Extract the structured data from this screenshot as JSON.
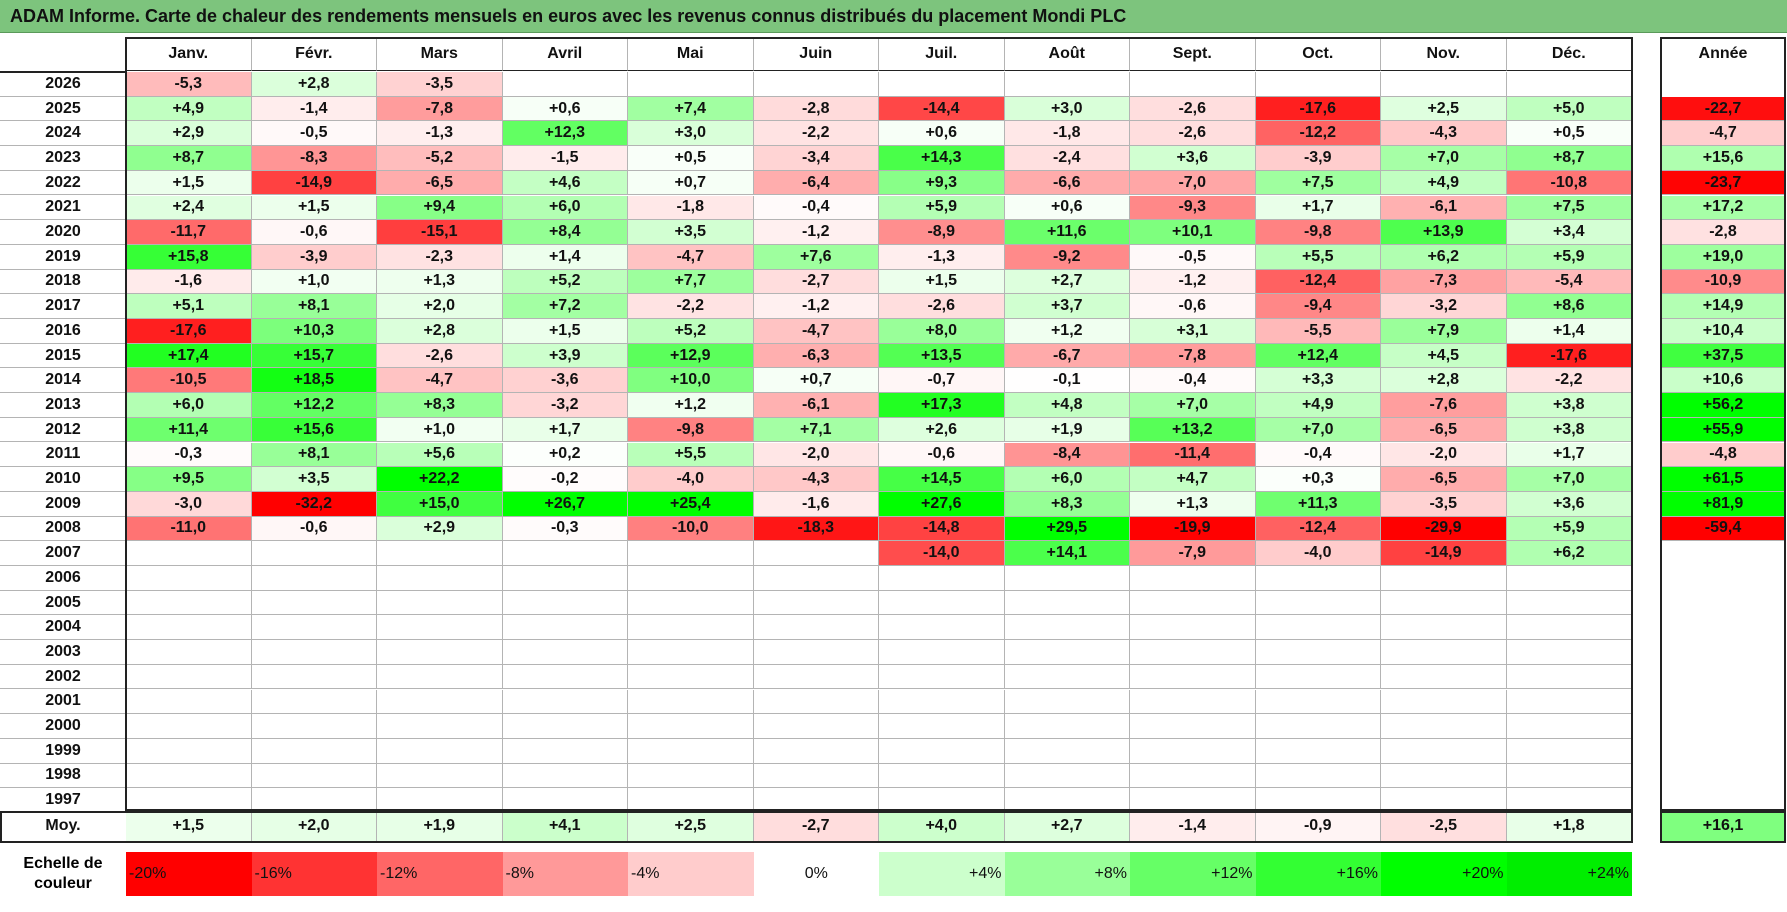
{
  "title": "ADAM Informe. Carte de chaleur des rendements mensuels en euros avec les revenus connus distribués du placement Mondi PLC",
  "chart_data": {
    "type": "heatmap",
    "columns": [
      "Janv.",
      "Févr.",
      "Mars",
      "Avril",
      "Mai",
      "Juin",
      "Juil.",
      "Août",
      "Sept.",
      "Oct.",
      "Nov.",
      "Déc."
    ],
    "year_label": "Année",
    "avg_label": "Moy.",
    "rows": [
      {
        "year": "2026",
        "months": [
          "-5,3",
          "+2,8",
          "-3,5",
          "",
          "",
          "",
          "",
          "",
          "",
          "",
          "",
          ""
        ],
        "total": ""
      },
      {
        "year": "2025",
        "months": [
          "+4,9",
          "-1,4",
          "-7,8",
          "+0,6",
          "+7,4",
          "-2,8",
          "-14,4",
          "+3,0",
          "-2,6",
          "-17,6",
          "+2,5",
          "+5,0"
        ],
        "total": "-22,7"
      },
      {
        "year": "2024",
        "months": [
          "+2,9",
          "-0,5",
          "-1,3",
          "+12,3",
          "+3,0",
          "-2,2",
          "+0,6",
          "-1,8",
          "-2,6",
          "-12,2",
          "-4,3",
          "+0,5"
        ],
        "total": "-4,7"
      },
      {
        "year": "2023",
        "months": [
          "+8,7",
          "-8,3",
          "-5,2",
          "-1,5",
          "+0,5",
          "-3,4",
          "+14,3",
          "-2,4",
          "+3,6",
          "-3,9",
          "+7,0",
          "+8,7"
        ],
        "total": "+15,6"
      },
      {
        "year": "2022",
        "months": [
          "+1,5",
          "-14,9",
          "-6,5",
          "+4,6",
          "+0,7",
          "-6,4",
          "+9,3",
          "-6,6",
          "-7,0",
          "+7,5",
          "+4,9",
          "-10,8"
        ],
        "total": "-23,7"
      },
      {
        "year": "2021",
        "months": [
          "+2,4",
          "+1,5",
          "+9,4",
          "+6,0",
          "-1,8",
          "-0,4",
          "+5,9",
          "+0,6",
          "-9,3",
          "+1,7",
          "-6,1",
          "+7,5"
        ],
        "total": "+17,2"
      },
      {
        "year": "2020",
        "months": [
          "-11,7",
          "-0,6",
          "-15,1",
          "+8,4",
          "+3,5",
          "-1,2",
          "-8,9",
          "+11,6",
          "+10,1",
          "-9,8",
          "+13,9",
          "+3,4"
        ],
        "total": "-2,8"
      },
      {
        "year": "2019",
        "months": [
          "+15,8",
          "-3,9",
          "-2,3",
          "+1,4",
          "-4,7",
          "+7,6",
          "-1,3",
          "-9,2",
          "-0,5",
          "+5,5",
          "+6,2",
          "+5,9"
        ],
        "total": "+19,0"
      },
      {
        "year": "2018",
        "months": [
          "-1,6",
          "+1,0",
          "+1,3",
          "+5,2",
          "+7,7",
          "-2,7",
          "+1,5",
          "+2,7",
          "-1,2",
          "-12,4",
          "-7,3",
          "-5,4"
        ],
        "total": "-10,9"
      },
      {
        "year": "2017",
        "months": [
          "+5,1",
          "+8,1",
          "+2,0",
          "+7,2",
          "-2,2",
          "-1,2",
          "-2,6",
          "+3,7",
          "-0,6",
          "-9,4",
          "-3,2",
          "+8,6"
        ],
        "total": "+14,9"
      },
      {
        "year": "2016",
        "months": [
          "-17,6",
          "+10,3",
          "+2,8",
          "+1,5",
          "+5,2",
          "-4,7",
          "+8,0",
          "+1,2",
          "+3,1",
          "-5,5",
          "+7,9",
          "+1,4"
        ],
        "total": "+10,4"
      },
      {
        "year": "2015",
        "months": [
          "+17,4",
          "+15,7",
          "-2,6",
          "+3,9",
          "+12,9",
          "-6,3",
          "+13,5",
          "-6,7",
          "-7,8",
          "+12,4",
          "+4,5",
          "-17,6"
        ],
        "total": "+37,5"
      },
      {
        "year": "2014",
        "months": [
          "-10,5",
          "+18,5",
          "-4,7",
          "-3,6",
          "+10,0",
          "+0,7",
          "-0,7",
          "-0,1",
          "-0,4",
          "+3,3",
          "+2,8",
          "-2,2"
        ],
        "total": "+10,6"
      },
      {
        "year": "2013",
        "months": [
          "+6,0",
          "+12,2",
          "+8,3",
          "-3,2",
          "+1,2",
          "-6,1",
          "+17,3",
          "+4,8",
          "+7,0",
          "+4,9",
          "-7,6",
          "+3,8"
        ],
        "total": "+56,2"
      },
      {
        "year": "2012",
        "months": [
          "+11,4",
          "+15,6",
          "+1,0",
          "+1,7",
          "-9,8",
          "+7,1",
          "+2,6",
          "+1,9",
          "+13,2",
          "+7,0",
          "-6,5",
          "+3,8"
        ],
        "total": "+55,9"
      },
      {
        "year": "2011",
        "months": [
          "-0,3",
          "+8,1",
          "+5,6",
          "+0,2",
          "+5,5",
          "-2,0",
          "-0,6",
          "-8,4",
          "-11,4",
          "-0,4",
          "-2,0",
          "+1,7"
        ],
        "total": "-4,8"
      },
      {
        "year": "2010",
        "months": [
          "+9,5",
          "+3,5",
          "+22,2",
          "-0,2",
          "-4,0",
          "-4,3",
          "+14,5",
          "+6,0",
          "+4,7",
          "+0,3",
          "-6,5",
          "+7,0"
        ],
        "total": "+61,5"
      },
      {
        "year": "2009",
        "months": [
          "-3,0",
          "-32,2",
          "+15,0",
          "+26,7",
          "+25,4",
          "-1,6",
          "+27,6",
          "+8,3",
          "+1,3",
          "+11,3",
          "-3,5",
          "+3,6"
        ],
        "total": "+81,9"
      },
      {
        "year": "2008",
        "months": [
          "-11,0",
          "-0,6",
          "+2,9",
          "-0,3",
          "-10,0",
          "-18,3",
          "-14,8",
          "+29,5",
          "-19,9",
          "-12,4",
          "-29,9",
          "+5,9"
        ],
        "total": "-59,4"
      },
      {
        "year": "2007",
        "months": [
          "",
          "",
          "",
          "",
          "",
          "",
          "-14,0",
          "+14,1",
          "-7,9",
          "-4,0",
          "-14,9",
          "+6,2"
        ],
        "total": ""
      },
      {
        "year": "2006",
        "months": [
          "",
          "",
          "",
          "",
          "",
          "",
          "",
          "",
          "",
          "",
          "",
          ""
        ],
        "total": ""
      },
      {
        "year": "2005",
        "months": [
          "",
          "",
          "",
          "",
          "",
          "",
          "",
          "",
          "",
          "",
          "",
          ""
        ],
        "total": ""
      },
      {
        "year": "2004",
        "months": [
          "",
          "",
          "",
          "",
          "",
          "",
          "",
          "",
          "",
          "",
          "",
          ""
        ],
        "total": ""
      },
      {
        "year": "2003",
        "months": [
          "",
          "",
          "",
          "",
          "",
          "",
          "",
          "",
          "",
          "",
          "",
          ""
        ],
        "total": ""
      },
      {
        "year": "2002",
        "months": [
          "",
          "",
          "",
          "",
          "",
          "",
          "",
          "",
          "",
          "",
          "",
          ""
        ],
        "total": ""
      },
      {
        "year": "2001",
        "months": [
          "",
          "",
          "",
          "",
          "",
          "",
          "",
          "",
          "",
          "",
          "",
          ""
        ],
        "total": ""
      },
      {
        "year": "2000",
        "months": [
          "",
          "",
          "",
          "",
          "",
          "",
          "",
          "",
          "",
          "",
          "",
          ""
        ],
        "total": ""
      },
      {
        "year": "1999",
        "months": [
          "",
          "",
          "",
          "",
          "",
          "",
          "",
          "",
          "",
          "",
          "",
          ""
        ],
        "total": ""
      },
      {
        "year": "1998",
        "months": [
          "",
          "",
          "",
          "",
          "",
          "",
          "",
          "",
          "",
          "",
          "",
          ""
        ],
        "total": ""
      },
      {
        "year": "1997",
        "months": [
          "",
          "",
          "",
          "",
          "",
          "",
          "",
          "",
          "",
          "",
          "",
          ""
        ],
        "total": ""
      }
    ],
    "average": {
      "months": [
        "+1,5",
        "+2,0",
        "+1,9",
        "+4,1",
        "+2,5",
        "-2,7",
        "+4,0",
        "+2,7",
        "-1,4",
        "-0,9",
        "-2,5",
        "+1,8"
      ],
      "total": "+16,1"
    },
    "scale_label": "Echelle de couleur",
    "scale": [
      {
        "label": "-20%",
        "value": -20,
        "color": "#ff0000"
      },
      {
        "label": "-16%",
        "value": -16,
        "color": "#ff3333"
      },
      {
        "label": "-12%",
        "value": -12,
        "color": "#ff6666"
      },
      {
        "label": "-8%",
        "value": -8,
        "color": "#ff9999"
      },
      {
        "label": "-4%",
        "value": -4,
        "color": "#ffcccc"
      },
      {
        "label": "0%",
        "value": 0,
        "color": "#ffffff"
      },
      {
        "label": "+4%",
        "value": 4,
        "color": "#ccffcc"
      },
      {
        "label": "+8%",
        "value": 8,
        "color": "#99ff99"
      },
      {
        "label": "+12%",
        "value": 12,
        "color": "#66ff66"
      },
      {
        "label": "+16%",
        "value": 16,
        "color": "#33ff33"
      },
      {
        "label": "+20%",
        "value": 20,
        "color": "#00ff00"
      },
      {
        "label": "+24%",
        "value": 24,
        "color": "#00ee00"
      }
    ]
  }
}
